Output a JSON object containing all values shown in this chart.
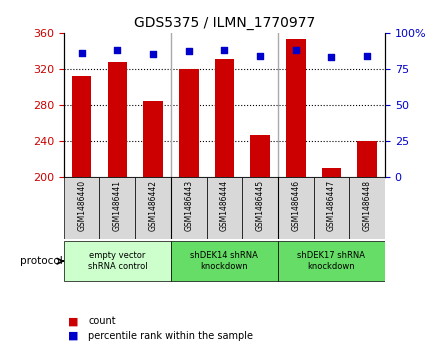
{
  "title": "GDS5375 / ILMN_1770977",
  "samples": [
    "GSM1486440",
    "GSM1486441",
    "GSM1486442",
    "GSM1486443",
    "GSM1486444",
    "GSM1486445",
    "GSM1486446",
    "GSM1486447",
    "GSM1486448"
  ],
  "counts": [
    312,
    328,
    284,
    320,
    331,
    247,
    353,
    210,
    240
  ],
  "percentiles": [
    86,
    88,
    85,
    87,
    88,
    84,
    88,
    83,
    84
  ],
  "ylim_left": [
    200,
    360
  ],
  "ylim_right": [
    0,
    100
  ],
  "yticks_left": [
    200,
    240,
    280,
    320,
    360
  ],
  "yticks_right": [
    0,
    25,
    50,
    75,
    100
  ],
  "grid_values": [
    240,
    280,
    320
  ],
  "bar_color": "#cc0000",
  "dot_color": "#0000cc",
  "bar_width": 0.55,
  "legend_count_label": "count",
  "legend_percentile_label": "percentile rank within the sample",
  "protocol_label": "protocol",
  "protocol_groups": [
    {
      "label": "empty vector\nshRNA control",
      "cols": [
        0,
        1,
        2
      ],
      "color": "#ccffcc"
    },
    {
      "label": "shDEK14 shRNA\nknockdown",
      "cols": [
        3,
        4,
        5
      ],
      "color": "#66dd66"
    },
    {
      "label": "shDEK17 shRNA\nknockdown",
      "cols": [
        6,
        7,
        8
      ],
      "color": "#66dd66"
    }
  ],
  "tick_bg_color": "#d8d8d8",
  "plot_bg_color": "#ffffff",
  "group_sep_color": "#aaaaaa"
}
